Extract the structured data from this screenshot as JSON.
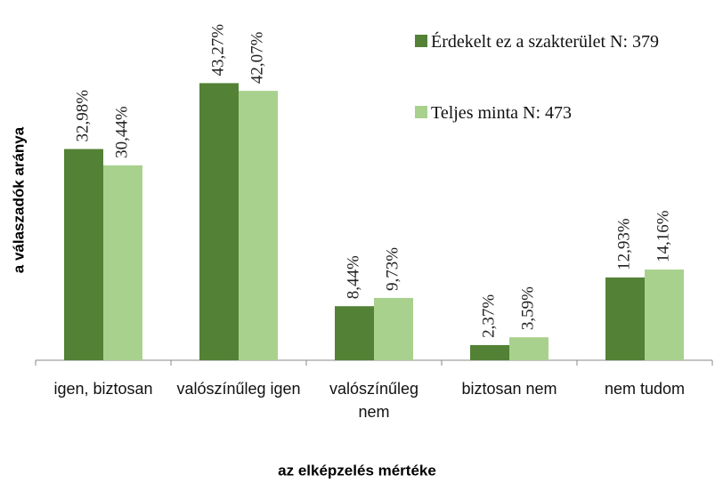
{
  "chart_data": {
    "type": "bar",
    "xlabel": "az elképzelés mértéke",
    "ylabel": "a válaszadók aránya",
    "categories": [
      "igen, biztosan",
      "valószínűleg igen",
      "valószínűleg nem",
      "biztosan nem",
      "nem tudom"
    ],
    "series": [
      {
        "name": "Érdekelt ez a szakterület N: 379",
        "color": "#538135",
        "values": [
          32.98,
          43.27,
          8.44,
          2.37,
          12.93
        ],
        "value_labels": [
          "32,98%",
          "43,27%",
          "8,44%",
          "2,37%",
          "12,93%"
        ]
      },
      {
        "name": "Teljes minta N: 473",
        "color": "#a9d18e",
        "values": [
          30.44,
          42.07,
          9.73,
          3.59,
          14.16
        ],
        "value_labels": [
          "30,44%",
          "42,07%",
          "9,73%",
          "3,59%",
          "14,16%"
        ]
      }
    ],
    "ylim": [
      0,
      50
    ],
    "legend": "top-right"
  }
}
